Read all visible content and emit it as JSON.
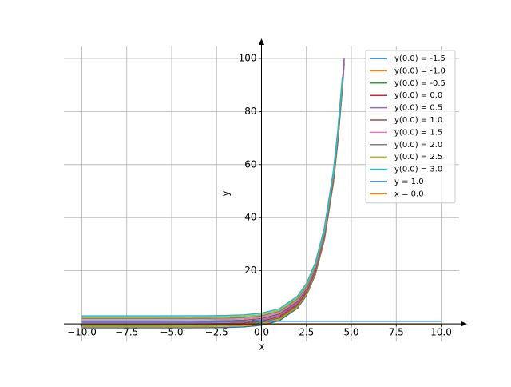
{
  "chart_data": {
    "type": "line",
    "xlabel": "x",
    "ylabel": "y",
    "x": [
      -10,
      -8,
      -6,
      -4,
      -3,
      -2,
      -1,
      0,
      1,
      2,
      2.5,
      3,
      3.5,
      4,
      4.25,
      4.5,
      4.6
    ],
    "series": [
      {
        "name": "y(0.0) = -1.5",
        "color": "#1f77b4",
        "values": [
          -1.5,
          -1.5,
          -1.5,
          -1.48,
          -1.45,
          -1.36,
          -1.13,
          -0.5,
          1.22,
          5.89,
          10.68,
          18.59,
          31.62,
          53.1,
          68.6,
          88.5,
          98.0
        ]
      },
      {
        "name": "y(0.0) = -1.0",
        "color": "#ff7f0e",
        "values": [
          -1.0,
          -1.0,
          -1.0,
          -0.98,
          -0.95,
          -0.86,
          -0.63,
          0.0,
          1.72,
          6.39,
          11.18,
          19.09,
          32.12,
          53.6,
          69.1,
          89.0,
          98.5
        ]
      },
      {
        "name": "y(0.0) = -0.5",
        "color": "#2ca02c",
        "values": [
          -0.5,
          -0.5,
          -0.5,
          -0.48,
          -0.45,
          -0.36,
          -0.13,
          0.5,
          2.22,
          6.89,
          11.68,
          19.59,
          32.62,
          54.1,
          69.6,
          89.5,
          99.0
        ]
      },
      {
        "name": "y(0.0) = 0.0",
        "color": "#d62728",
        "values": [
          0.0,
          0.0,
          0.0,
          0.02,
          0.05,
          0.14,
          0.37,
          1.0,
          2.72,
          7.39,
          12.18,
          20.09,
          33.12,
          54.6,
          70.1,
          90.0,
          99.5
        ]
      },
      {
        "name": "y(0.0) = 0.5",
        "color": "#9467bd",
        "values": [
          0.5,
          0.5,
          0.5,
          0.52,
          0.55,
          0.64,
          0.87,
          1.5,
          3.22,
          7.89,
          12.68,
          20.59,
          33.62,
          55.1,
          70.6,
          90.5,
          100.0
        ]
      },
      {
        "name": "y(0.0) = 1.0",
        "color": "#8c564b",
        "values": [
          1.0,
          1.0,
          1.0,
          1.02,
          1.05,
          1.14,
          1.37,
          2.0,
          3.72,
          8.39,
          13.18,
          21.09,
          34.12,
          55.6,
          71.1,
          91.0,
          null
        ]
      },
      {
        "name": "y(0.0) = 1.5",
        "color": "#e377c2",
        "values": [
          1.5,
          1.5,
          1.5,
          1.52,
          1.55,
          1.64,
          1.87,
          2.5,
          4.22,
          8.89,
          13.68,
          21.59,
          34.62,
          56.1,
          71.6,
          91.5,
          null
        ]
      },
      {
        "name": "y(0.0) = 2.0",
        "color": "#7f7f7f",
        "values": [
          2.0,
          2.0,
          2.0,
          2.02,
          2.05,
          2.14,
          2.37,
          3.0,
          4.72,
          9.39,
          14.18,
          22.09,
          35.12,
          56.6,
          72.1,
          92.0,
          null
        ]
      },
      {
        "name": "y(0.0) = 2.5",
        "color": "#bcbd22",
        "values": [
          2.5,
          2.5,
          2.5,
          2.52,
          2.55,
          2.64,
          2.87,
          3.5,
          5.22,
          9.89,
          14.68,
          22.59,
          35.62,
          57.1,
          72.6,
          92.5,
          null
        ]
      },
      {
        "name": "y(0.0) = 3.0",
        "color": "#17becf",
        "values": [
          3.0,
          3.0,
          3.0,
          3.02,
          3.05,
          3.14,
          3.37,
          4.0,
          5.72,
          10.39,
          15.18,
          23.09,
          36.12,
          57.6,
          73.1,
          93.0,
          null
        ]
      },
      {
        "name": "y = 1.0",
        "color": "#1f77b4",
        "x": [
          -10,
          10
        ],
        "values": [
          1.0,
          1.0
        ]
      },
      {
        "name": "x = 0.0",
        "color": "#ff7f0e",
        "x": [
          -10,
          10
        ],
        "values": [
          0.0,
          0.0
        ]
      }
    ],
    "xlim": [
      -11,
      11
    ],
    "ylim": [
      -6.6,
      104.5
    ],
    "xticks": [
      {
        "value": -10,
        "label": "−10.0"
      },
      {
        "value": -7.5,
        "label": "−7.5"
      },
      {
        "value": -5,
        "label": "−5.0"
      },
      {
        "value": -2.5,
        "label": "−2.5"
      },
      {
        "value": 0,
        "label": "0.0"
      },
      {
        "value": 2.5,
        "label": "2.5"
      },
      {
        "value": 5,
        "label": "5.0"
      },
      {
        "value": 7.5,
        "label": "7.5"
      },
      {
        "value": 10,
        "label": "10.0"
      }
    ],
    "yticks": [
      0,
      20,
      40,
      60,
      80,
      100
    ],
    "grid": true,
    "legend": "upper right"
  }
}
